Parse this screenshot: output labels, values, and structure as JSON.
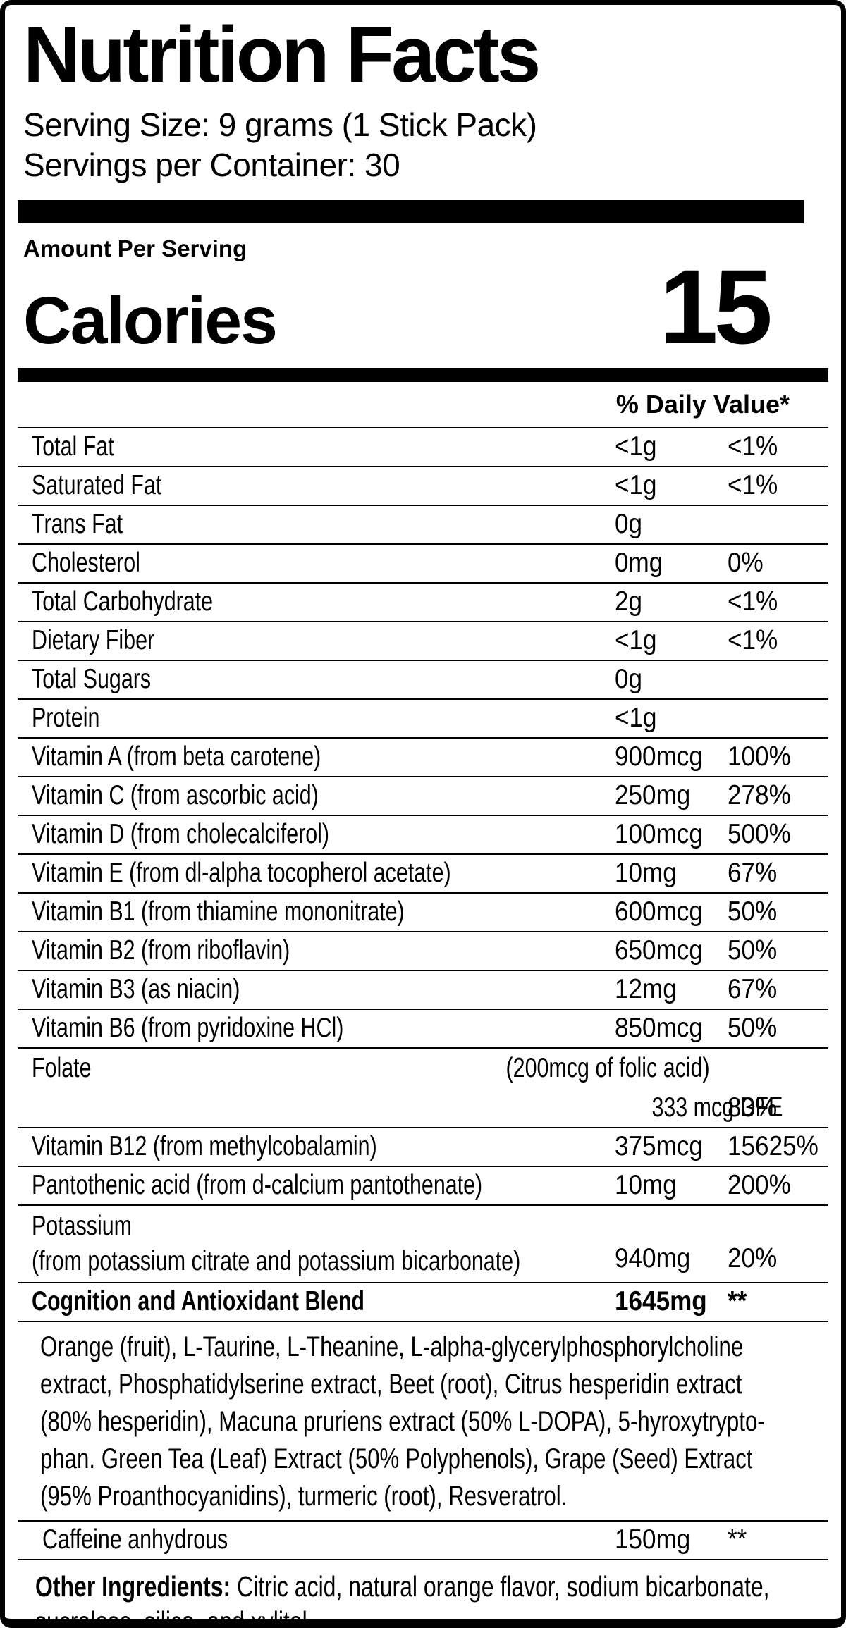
{
  "header": {
    "title": "Nutrition Facts",
    "serving_size": "Serving Size: 9 grams (1 Stick Pack)",
    "servings_per_container": "Servings per Container: 30"
  },
  "summary": {
    "amount_per_serving": "Amount Per Serving",
    "calories_label": "Calories",
    "calories_value": "15"
  },
  "table": {
    "daily_value_header": "% Daily Value*",
    "rows": [
      {
        "label": "Total Fat",
        "amount": "<1g",
        "dv": "<1%"
      },
      {
        "label": "Saturated Fat",
        "amount": "<1g",
        "dv": "<1%"
      },
      {
        "label": "Trans Fat",
        "amount": "0g",
        "dv": ""
      },
      {
        "label": "Cholesterol",
        "amount": "0mg",
        "dv": "0%"
      },
      {
        "label": "Total Carbohydrate",
        "amount": "2g",
        "dv": "<1%"
      },
      {
        "label": "Dietary Fiber",
        "amount": "<1g",
        "dv": "<1%"
      },
      {
        "label": "Total Sugars",
        "amount": "0g",
        "dv": ""
      },
      {
        "label": "Protein",
        "amount": "<1g",
        "dv": ""
      },
      {
        "label": "Vitamin A (from beta carotene)",
        "amount": "900mcg",
        "dv": "100%"
      },
      {
        "label": "Vitamin C (from ascorbic acid)",
        "amount": "250mg",
        "dv": "278%"
      },
      {
        "label": "Vitamin D (from cholecalciferol)",
        "amount": "100mcg",
        "dv": "500%"
      },
      {
        "label": "Vitamin E (from dl-alpha tocopherol acetate)",
        "amount": "10mg",
        "dv": "67%"
      },
      {
        "label": "Vitamin B1 (from thiamine mononitrate)",
        "amount": "600mcg",
        "dv": "50%"
      },
      {
        "label": "Vitamin B2 (from riboflavin)",
        "amount": "650mcg",
        "dv": "50%"
      },
      {
        "label": "Vitamin B3 (as niacin)",
        "amount": "12mg",
        "dv": "67%"
      },
      {
        "label": "Vitamin B6 (from pyridoxine HCl)",
        "amount": "850mcg",
        "dv": "50%"
      },
      {
        "type": "folate",
        "label": "Folate",
        "amount_note": "(200mcg of folic acid)",
        "amount": "333 mcg DFE",
        "dv": "83%"
      },
      {
        "label": "Vitamin B12 (from methylcobalamin)",
        "amount": "375mcg",
        "dv": "15625%"
      },
      {
        "label": "Pantothenic acid (from d-calcium pantothenate)",
        "amount": "10mg",
        "dv": "200%"
      },
      {
        "type": "two",
        "label": "Potassium",
        "label2": "(from potassium citrate and potassium bicarbonate)",
        "amount": "940mg",
        "dv": "20%"
      },
      {
        "bold": true,
        "label": "Cognition and Antioxidant Blend",
        "amount": "1645mg",
        "dv": "**"
      }
    ]
  },
  "blend_description": {
    "lines": [
      "Orange (fruit), L-Taurine, L-Theanine, L-alpha-glycerylphosphorylcholine",
      "extract, Phosphatidylserine extract, Beet (root), Citrus hesperidin extract",
      "(80% hesperidin), Macuna pruriens extract (50% L-DOPA), 5-hyroxytrypto-",
      "phan. Green Tea (Leaf) Extract (50% Polyphenols), Grape (Seed) Extract",
      "(95% Proanthocyanidins), turmeric (root), Resveratrol."
    ]
  },
  "caffeine": {
    "label": "Caffeine anhydrous",
    "amount": "150mg",
    "dv": "**"
  },
  "other_ingredients": {
    "prefix": "Other Ingredients:",
    "line1_rest": " Citric acid, natural orange flavor, sodium bicarbonate,",
    "line2": "sucralose, silica, and xylitol."
  }
}
